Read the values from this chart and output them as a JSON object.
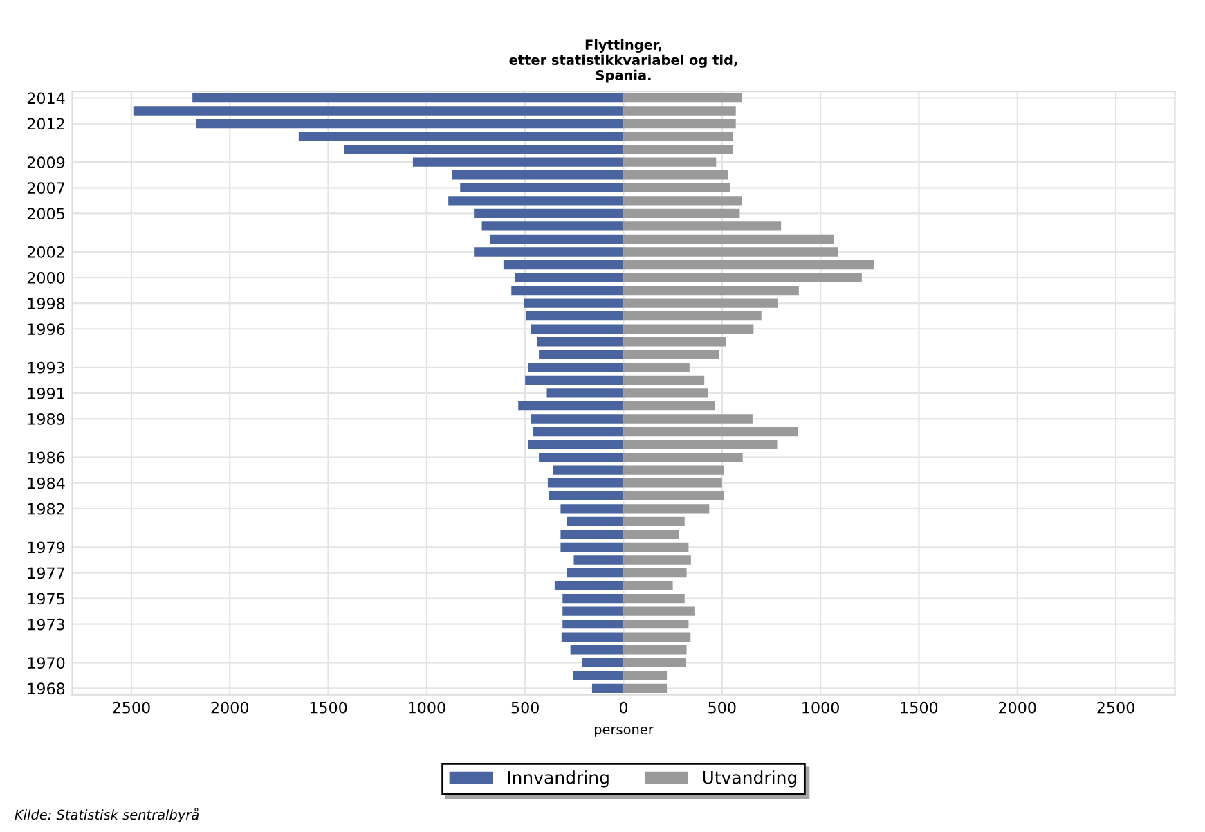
{
  "chart_data": {
    "type": "bar",
    "orientation": "horizontal",
    "title": "Flyttinger,\netter statistikkvariabel og tid,\nSpania.",
    "xlabel": "personer",
    "categories": [
      "2014",
      null,
      "2012",
      null,
      null,
      "2009",
      null,
      "2007",
      null,
      "2005",
      null,
      null,
      "2002",
      null,
      "2000",
      null,
      "1998",
      null,
      "1996",
      null,
      null,
      "1993",
      null,
      "1991",
      null,
      "1989",
      null,
      null,
      "1986",
      null,
      "1984",
      null,
      "1982",
      null,
      null,
      "1979",
      null,
      "1977",
      null,
      "1975",
      null,
      "1973",
      null,
      null,
      "1970",
      null,
      "1968"
    ],
    "series": [
      {
        "name": "Innvandring",
        "color": "#4a64a0",
        "values": [
          -2190,
          -2490,
          -2170,
          -1650,
          -1420,
          -1070,
          -870,
          -830,
          -890,
          -760,
          -720,
          -680,
          -760,
          -610,
          -550,
          -570,
          -505,
          -495,
          -470,
          -440,
          -430,
          -485,
          -500,
          -390,
          -535,
          -470,
          -460,
          -485,
          -430,
          -360,
          -385,
          -380,
          -320,
          -287,
          -320,
          -320,
          -253,
          -287,
          -350,
          -310,
          -310,
          -310,
          -315,
          -270,
          -210,
          -255,
          -160
        ]
      },
      {
        "name": "Utvandring",
        "color": "#9a9a9a",
        "values": [
          600,
          570,
          570,
          555,
          555,
          470,
          530,
          540,
          600,
          590,
          800,
          1070,
          1090,
          1270,
          1210,
          890,
          785,
          700,
          660,
          520,
          485,
          335,
          410,
          430,
          465,
          655,
          885,
          780,
          605,
          510,
          500,
          510,
          435,
          310,
          280,
          330,
          342,
          320,
          250,
          310,
          360,
          330,
          340,
          320,
          315,
          220,
          220
        ]
      }
    ],
    "xlim": [
      -2800,
      2800
    ],
    "xticks": [
      {
        "value": -2500,
        "label": "2500"
      },
      {
        "value": -2000,
        "label": "2000"
      },
      {
        "value": -1500,
        "label": "1500"
      },
      {
        "value": -1000,
        "label": "1000"
      },
      {
        "value": -500,
        "label": "500"
      },
      0,
      500,
      1000,
      1500,
      2000,
      2500
    ],
    "grid": true,
    "legend": "bottom",
    "stacked": true,
    "annotations": [
      "Kilde: Statistisk sentralbyrå"
    ]
  }
}
